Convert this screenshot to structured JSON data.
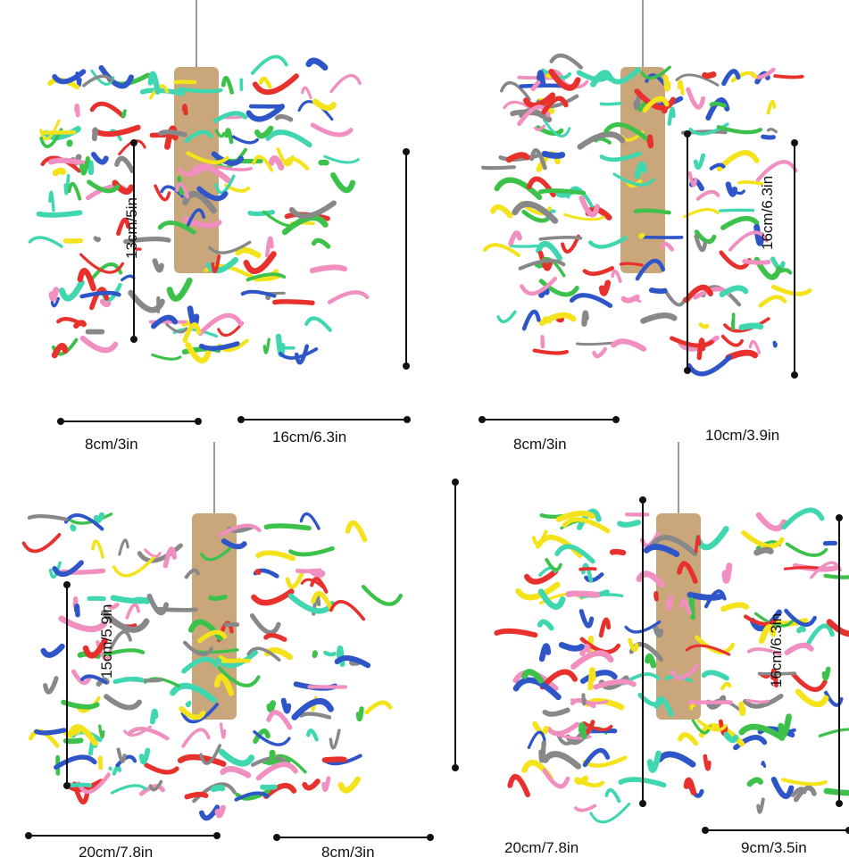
{
  "products": [
    {
      "name": "toy-top-left",
      "width_label": "8cm/3in",
      "length_label": "16cm/6.3in",
      "height_label": "13cm/5in"
    },
    {
      "name": "toy-top-right",
      "width_label": "8cm/3in",
      "length_label": "10cm/3.9in",
      "height_label": "16cm/6.3in"
    },
    {
      "name": "toy-bottom-left",
      "width_label": "20cm/7.8in",
      "length_label": "8cm/3in",
      "height_label": "15cm/5.9in"
    },
    {
      "name": "toy-bottom-right",
      "width_label": "20cm/7.8in",
      "length_label": "9cm/3.5in",
      "height_label": "16cm/6.3in"
    }
  ],
  "colors": {
    "yellow": "#f4e21a",
    "red": "#e8302c",
    "pink": "#f08fc0",
    "green": "#3cc24a",
    "teal": "#3fd6b0",
    "blue": "#2f56c8",
    "wood": "#c9a77a",
    "gray": "#888888"
  }
}
